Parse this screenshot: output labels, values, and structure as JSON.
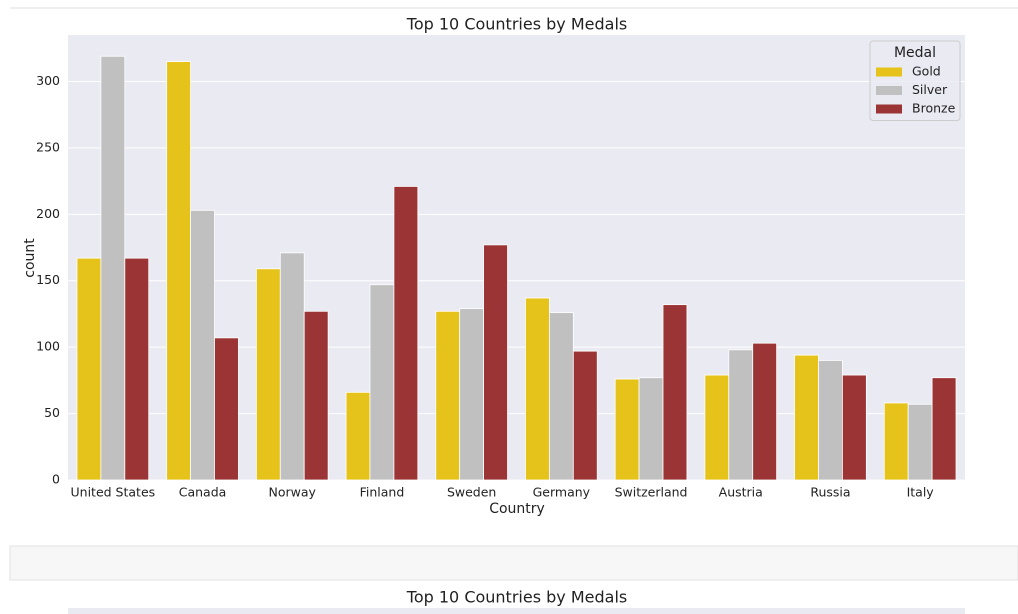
{
  "chart_data": {
    "type": "bar",
    "title": "Top 10 Countries by Medals",
    "x_label": "Country",
    "y_label": "count",
    "categories": [
      "United States",
      "Canada",
      "Norway",
      "Finland",
      "Sweden",
      "Germany",
      "Switzerland",
      "Austria",
      "Russia",
      "Italy"
    ],
    "legend_title": "Medal",
    "legend": "upper right",
    "grid": true,
    "series": [
      {
        "name": "Gold",
        "color": "#e6c31b",
        "values": [
          167,
          315,
          159,
          66,
          127,
          137,
          76,
          79,
          94,
          58
        ]
      },
      {
        "name": "Silver",
        "color": "#c0c0c0",
        "values": [
          319,
          203,
          171,
          147,
          129,
          126,
          77,
          98,
          90,
          57
        ]
      },
      {
        "name": "Bronze",
        "color": "#9b3535",
        "values": [
          167,
          107,
          127,
          221,
          177,
          97,
          132,
          103,
          79,
          77
        ]
      }
    ],
    "ylim": [
      0,
      335
    ],
    "yticks": [
      0,
      50,
      100,
      150,
      200,
      250,
      300
    ]
  },
  "next_output_title": "Top 10 Countries by Medals"
}
